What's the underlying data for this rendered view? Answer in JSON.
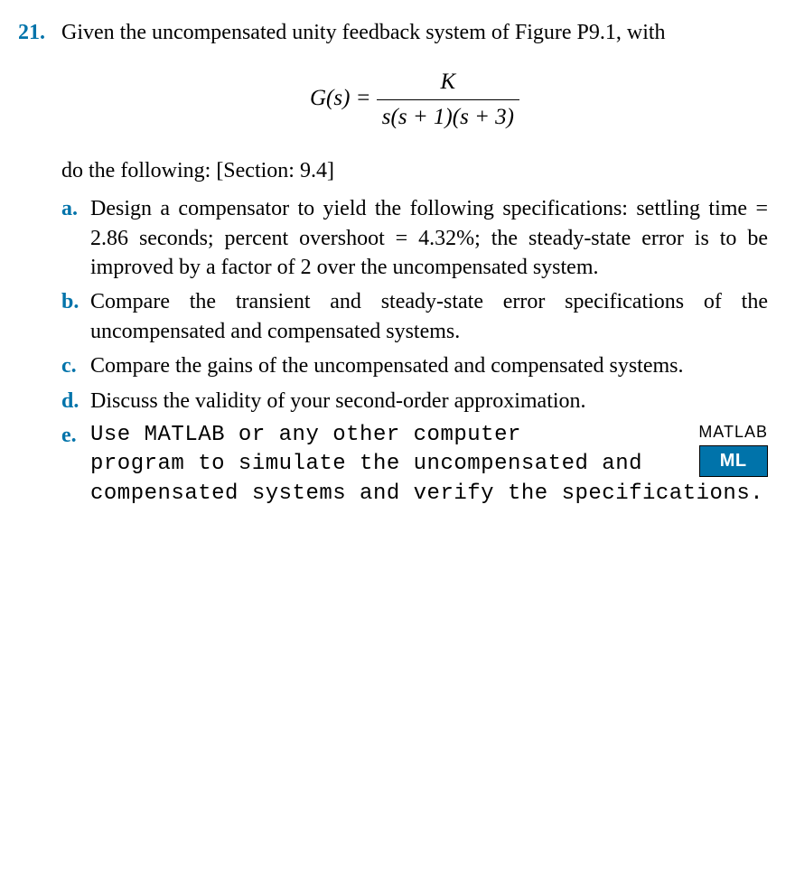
{
  "problem_number": "21.",
  "intro_text": "Given the uncompensated unity feedback system of Figure P9.1, with",
  "equation": {
    "lhs": "G(s) =",
    "numerator": "K",
    "denominator": "s(s + 1)(s + 3)"
  },
  "sub_intro": "do the following: [Section: 9.4]",
  "items": [
    {
      "label": "a.",
      "text": "Design a compensator to yield the following specifi­cations: settling time = 2.86 seconds; percent overshoot = 4.32%; the steady-state error is to be improved by a factor of 2 over the uncompensated system."
    },
    {
      "label": "b.",
      "text": "Compare the transient and steady-state error specifica­tions of the uncompensated and compensated systems."
    },
    {
      "label": "c.",
      "text": "Compare the gains of the uncompensated and compensated systems."
    },
    {
      "label": "d.",
      "text": "Discuss the validity of your second-order approximation."
    }
  ],
  "item_e": {
    "label": "e.",
    "line1_prefix": "Use MATLAB or any other computer",
    "rest": "program to simulate the uncompensated and compensated systems and verify the specifications.",
    "badge_label": "MATLAB",
    "badge_text": "ML"
  },
  "colors": {
    "accent": "#0073aa",
    "text": "#000000",
    "background": "#ffffff"
  }
}
